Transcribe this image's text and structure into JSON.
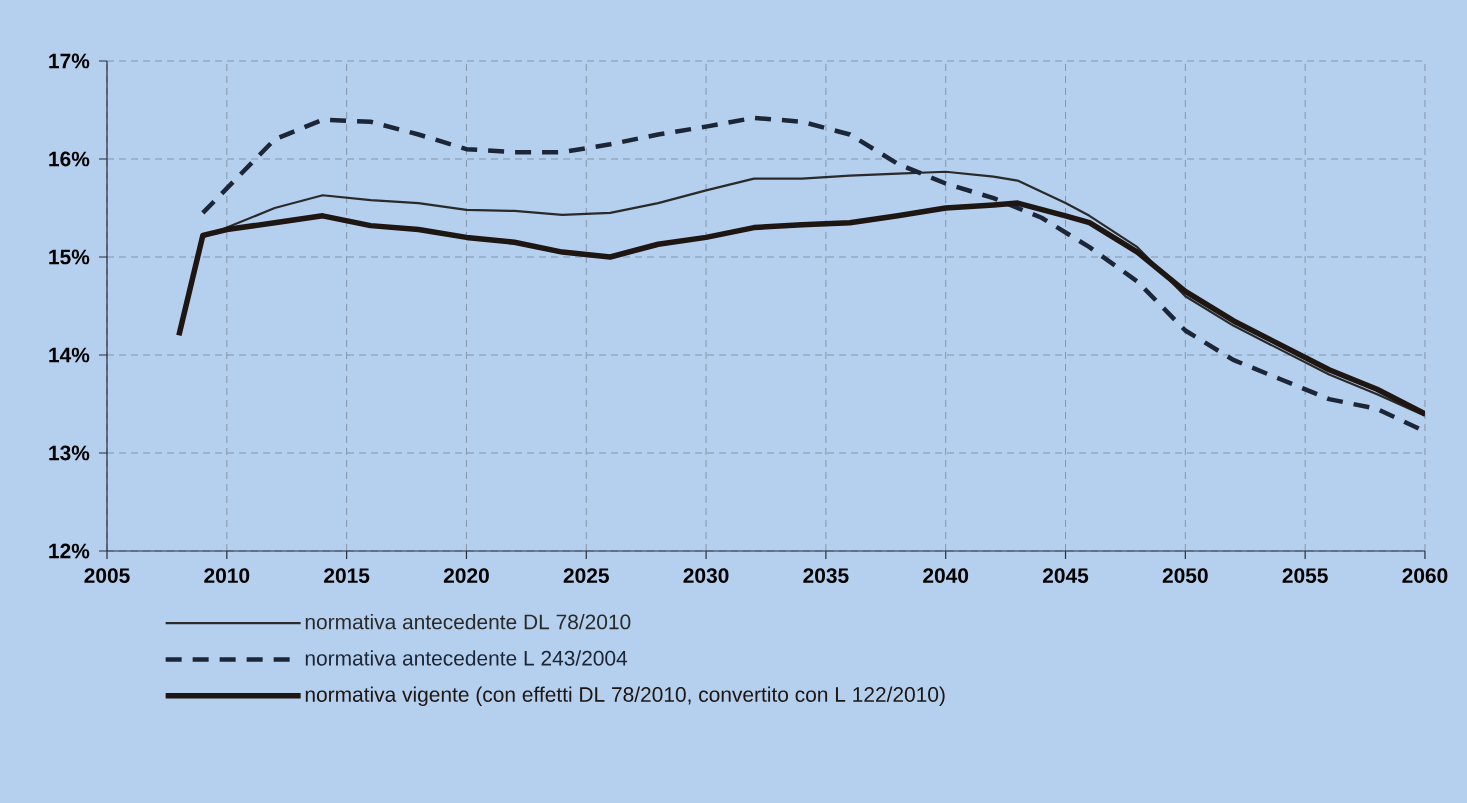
{
  "chart_data": {
    "type": "line",
    "xlim": [
      2005,
      2060
    ],
    "ylim": [
      12,
      17
    ],
    "xticks": [
      2005,
      2010,
      2015,
      2020,
      2025,
      2030,
      2035,
      2040,
      2045,
      2050,
      2055,
      2060
    ],
    "yticks": [
      {
        "value": 12,
        "label": "12%"
      },
      {
        "value": 13,
        "label": "13%"
      },
      {
        "value": 14,
        "label": "14%"
      },
      {
        "value": 15,
        "label": "15%"
      },
      {
        "value": 16,
        "label": "16%"
      },
      {
        "value": 17,
        "label": "17%"
      }
    ],
    "grid": true,
    "legend": "bottom",
    "series": [
      {
        "name": "normativa antecedente DL 78/2010",
        "color": "#2a2a2a",
        "line_style": "solid",
        "x": [
          2009,
          2010,
          2012,
          2014,
          2016,
          2018,
          2020,
          2022,
          2024,
          2026,
          2028,
          2030,
          2032,
          2034,
          2036,
          2038,
          2040,
          2042,
          2043,
          2045,
          2046,
          2048,
          2050,
          2052,
          2054,
          2056,
          2058,
          2060
        ],
        "values": [
          15.2,
          15.3,
          15.5,
          15.63,
          15.58,
          15.55,
          15.48,
          15.47,
          15.43,
          15.45,
          15.55,
          15.68,
          15.8,
          15.8,
          15.83,
          15.85,
          15.87,
          15.82,
          15.78,
          15.55,
          15.42,
          15.1,
          14.6,
          14.3,
          14.05,
          13.8,
          13.6,
          13.38
        ]
      },
      {
        "name": "normativa antecedente L 243/2004",
        "color": "#1c2636",
        "line_style": "dashed",
        "x": [
          2009,
          2010,
          2011,
          2012,
          2014,
          2016,
          2018,
          2020,
          2022,
          2024,
          2026,
          2028,
          2030,
          2032,
          2034,
          2036,
          2038,
          2040,
          2042,
          2044,
          2046,
          2048,
          2050,
          2052,
          2054,
          2056,
          2058,
          2060
        ],
        "values": [
          15.45,
          15.7,
          15.95,
          16.2,
          16.4,
          16.38,
          16.25,
          16.1,
          16.07,
          16.07,
          16.15,
          16.25,
          16.33,
          16.42,
          16.38,
          16.25,
          15.95,
          15.75,
          15.6,
          15.4,
          15.1,
          14.75,
          14.25,
          13.95,
          13.75,
          13.55,
          13.45,
          13.22
        ]
      },
      {
        "name": "normativa vigente (con effetti DL 78/2010, convertito con L 122/2010)",
        "color": "#1e1612",
        "line_style": "solid",
        "x": [
          2008,
          2009,
          2010,
          2012,
          2014,
          2016,
          2018,
          2020,
          2022,
          2024,
          2026,
          2028,
          2030,
          2032,
          2034,
          2036,
          2038,
          2040,
          2042,
          2043,
          2045,
          2046,
          2048,
          2050,
          2052,
          2054,
          2056,
          2058,
          2060
        ],
        "values": [
          14.2,
          15.22,
          15.28,
          15.35,
          15.42,
          15.32,
          15.28,
          15.2,
          15.15,
          15.05,
          15.0,
          15.13,
          15.2,
          15.3,
          15.33,
          15.35,
          15.42,
          15.5,
          15.53,
          15.55,
          15.42,
          15.35,
          15.05,
          14.65,
          14.35,
          14.1,
          13.85,
          13.65,
          13.4
        ]
      }
    ]
  }
}
